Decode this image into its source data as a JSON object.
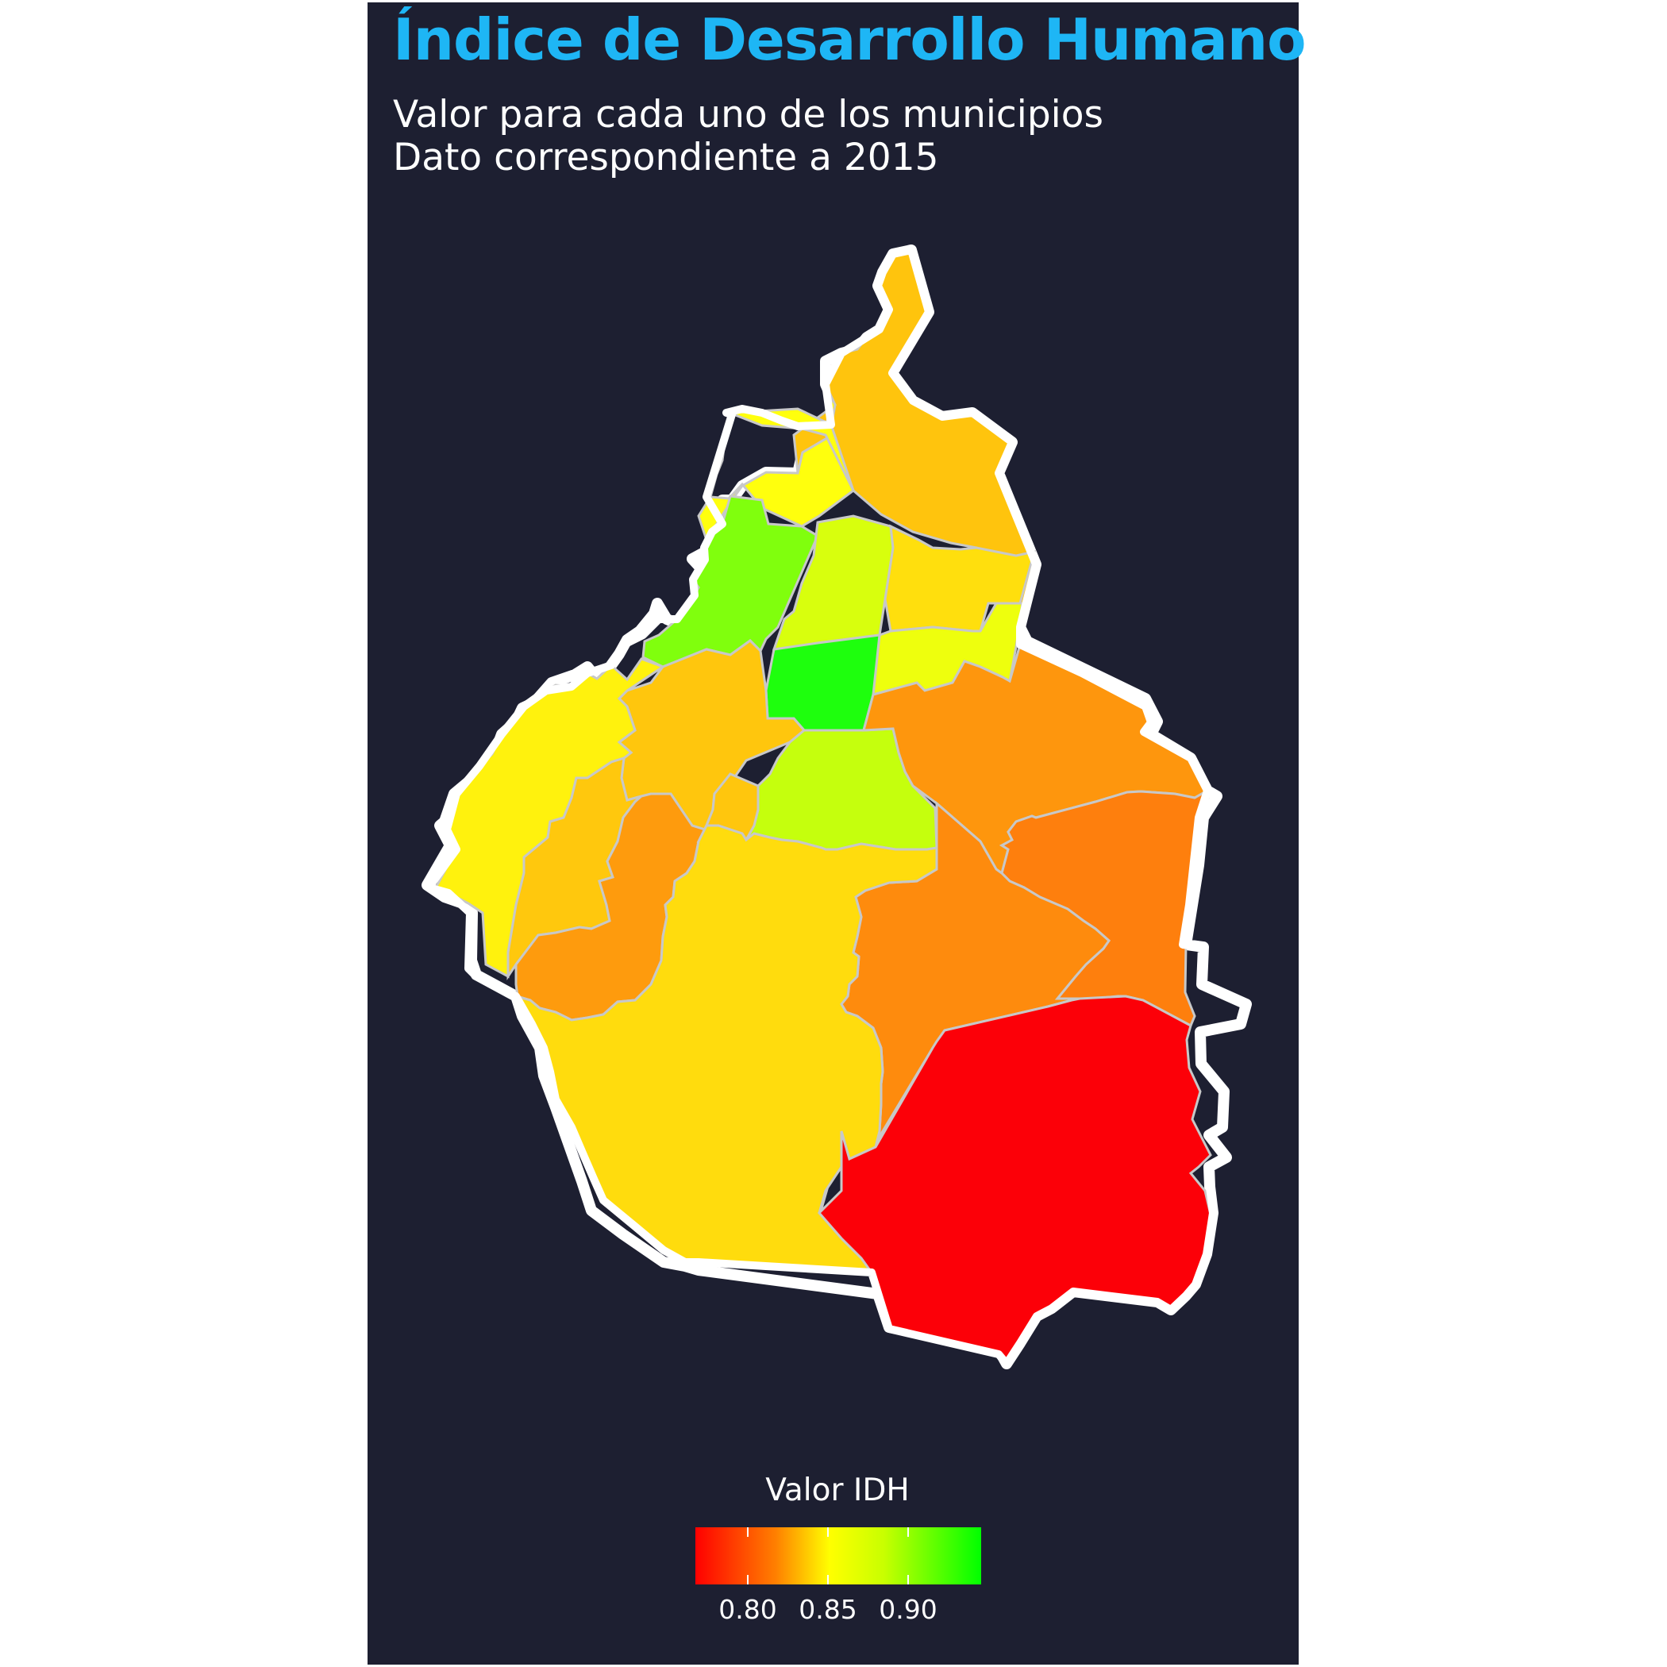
{
  "title": "Índice de Desarrollo Humano",
  "subtitle": [
    "Valor para cada uno de los municipios",
    "Dato correspondiente a 2015"
  ],
  "legend": {
    "title": "Valor IDH",
    "ticks": [
      "0.80",
      "0.85",
      "0.90"
    ],
    "colors": [
      "#ff0000",
      "#ff7f00",
      "#ffff00",
      "#c8ff00",
      "#00ff00"
    ]
  },
  "colors": {
    "panel_background": "#1d1f31",
    "title": "#1eb6f5",
    "text": "#ffffff",
    "outline": "#ffffff",
    "region_border": "#c8c8c8"
  },
  "regions": [
    {
      "id": "north",
      "color": "#ffc40d"
    },
    {
      "id": "northwest",
      "color": "#ffff0d"
    },
    {
      "id": "west-green",
      "color": "#80ff0d"
    },
    {
      "id": "center-north",
      "color": "#d8ff0d"
    },
    {
      "id": "northeast",
      "color": "#ffdf0d"
    },
    {
      "id": "east-lime",
      "color": "#eeff0d"
    },
    {
      "id": "center-green",
      "color": "#1eff0d"
    },
    {
      "id": "west-center",
      "color": "#ffc60d"
    },
    {
      "id": "far-west",
      "color": "#fff20d"
    },
    {
      "id": "west-strip",
      "color": "#ffc80d"
    },
    {
      "id": "southwest",
      "color": "#fe9b0d"
    },
    {
      "id": "center-lime",
      "color": "#c5ff0d"
    },
    {
      "id": "east",
      "color": "#fe960d"
    },
    {
      "id": "east-2",
      "color": "#fe7f0d"
    },
    {
      "id": "south-center",
      "color": "#fe8b0d"
    },
    {
      "id": "south",
      "color": "#ffdc0d"
    },
    {
      "id": "southeast",
      "color": "#fc0008"
    }
  ]
}
